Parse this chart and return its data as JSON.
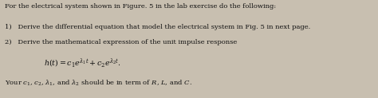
{
  "bg_color": "#c8bfb0",
  "text_color": "#111111",
  "title_line": "For the electrical system shown in Figure. 5 in the lab exercise do the following:",
  "item1": "1)   Derive the differential equation that model the electrical system in Fig. 5 in next page.",
  "item2": "2)   Derive the mathematical expression of the unit impulse response",
  "fig_width": 4.74,
  "fig_height": 1.23,
  "dpi": 100,
  "fs_main": 6.0,
  "fs_formula": 6.8
}
